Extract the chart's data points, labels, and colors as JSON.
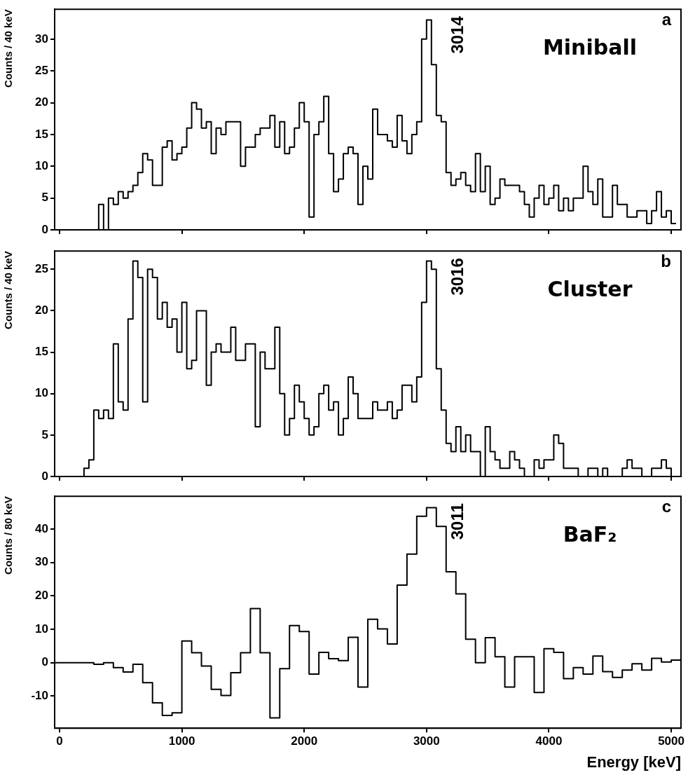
{
  "chart_data": [
    {
      "type": "histogram",
      "title": "Miniball",
      "ylabel": "Counts / 40 keV",
      "annotations": [
        "a",
        "3014"
      ],
      "color": "#000000",
      "tick_labels": "y",
      "xlim": [
        -40,
        5080
      ],
      "xticks": [
        0,
        1000,
        2000,
        3000,
        4000,
        5000
      ],
      "ylim": [
        0,
        34.7
      ],
      "yticks": [
        0,
        5,
        10,
        15,
        20,
        25,
        30
      ],
      "bins": [
        -40,
        0,
        40,
        80,
        120,
        160,
        200,
        240,
        280,
        320,
        360,
        400,
        440,
        480,
        520,
        560,
        600,
        640,
        680,
        720,
        760,
        800,
        840,
        880,
        920,
        960,
        1000,
        1040,
        1080,
        1120,
        1160,
        1200,
        1240,
        1280,
        1320,
        1360,
        1400,
        1440,
        1480,
        1520,
        1560,
        1600,
        1640,
        1680,
        1720,
        1760,
        1800,
        1840,
        1880,
        1920,
        1960,
        2000,
        2040,
        2080,
        2120,
        2160,
        2200,
        2240,
        2280,
        2320,
        2360,
        2400,
        2440,
        2480,
        2520,
        2560,
        2600,
        2640,
        2680,
        2720,
        2760,
        2800,
        2840,
        2880,
        2920,
        2960,
        3000,
        3040,
        3080,
        3120,
        3160,
        3200,
        3240,
        3280,
        3320,
        3360,
        3400,
        3440,
        3480,
        3520,
        3560,
        3600,
        3640,
        3680,
        3720,
        3760,
        3800,
        3840,
        3880,
        3920,
        3960,
        4000,
        4040,
        4080,
        4120,
        4160,
        4200,
        4240,
        4280,
        4320,
        4360,
        4400,
        4440,
        4480,
        4520,
        4560,
        4600,
        4640,
        4680,
        4720,
        4760,
        4800,
        4840,
        4880,
        4920,
        4960,
        5000,
        5040
      ],
      "values": [
        0,
        0,
        0,
        0,
        0,
        0,
        0,
        0,
        0,
        4,
        0,
        5,
        4,
        6,
        5,
        6,
        7,
        9,
        12,
        11,
        7,
        7,
        13,
        14,
        11,
        12,
        13,
        16,
        20,
        19,
        16,
        17,
        12,
        16,
        15,
        17,
        17,
        17,
        10,
        13,
        13,
        15,
        16,
        16,
        18,
        13,
        17,
        12,
        13,
        16,
        20,
        17,
        2,
        15,
        17,
        21,
        12,
        6,
        8,
        12,
        13,
        12,
        4,
        10,
        8,
        19,
        15,
        15,
        14,
        13,
        18,
        14,
        12,
        15,
        17,
        30,
        33,
        26,
        18,
        17,
        9,
        7,
        8,
        9,
        7,
        6,
        12,
        6,
        10,
        4,
        5,
        8,
        7,
        7,
        7,
        6,
        4,
        2,
        5,
        7,
        4,
        5,
        7,
        3,
        5,
        3,
        5,
        5,
        10,
        6,
        4,
        8,
        2,
        2,
        7,
        4,
        4,
        2,
        2,
        3,
        3,
        1,
        3,
        6,
        2,
        3,
        1
      ]
    },
    {
      "type": "histogram",
      "title": "Cluster",
      "ylabel": "Counts / 40 keV",
      "annotations": [
        "b",
        "3016"
      ],
      "color": "#000000",
      "tick_labels": "y",
      "xlim": [
        -40,
        5080
      ],
      "xticks": [
        0,
        1000,
        2000,
        3000,
        4000,
        5000
      ],
      "ylim": [
        0,
        27.2
      ],
      "yticks": [
        0,
        5,
        10,
        15,
        20,
        25
      ],
      "bins": [
        -40,
        0,
        40,
        80,
        120,
        160,
        200,
        240,
        280,
        320,
        360,
        400,
        440,
        480,
        520,
        560,
        600,
        640,
        680,
        720,
        760,
        800,
        840,
        880,
        920,
        960,
        1000,
        1040,
        1080,
        1120,
        1160,
        1200,
        1240,
        1280,
        1320,
        1360,
        1400,
        1440,
        1480,
        1520,
        1560,
        1600,
        1640,
        1680,
        1720,
        1760,
        1800,
        1840,
        1880,
        1920,
        1960,
        2000,
        2040,
        2080,
        2120,
        2160,
        2200,
        2240,
        2280,
        2320,
        2360,
        2400,
        2440,
        2480,
        2520,
        2560,
        2600,
        2640,
        2680,
        2720,
        2760,
        2800,
        2840,
        2880,
        2920,
        2960,
        3000,
        3040,
        3080,
        3120,
        3160,
        3200,
        3240,
        3280,
        3320,
        3360,
        3400,
        3440,
        3480,
        3520,
        3560,
        3600,
        3640,
        3680,
        3720,
        3760,
        3800,
        3840,
        3880,
        3920,
        3960,
        4000,
        4040,
        4080,
        4120,
        4160,
        4200,
        4240,
        4280,
        4320,
        4360,
        4400,
        4440,
        4480,
        4520,
        4560,
        4600,
        4640,
        4680,
        4720,
        4760,
        4800,
        4840,
        4880,
        4920,
        4960,
        5000,
        5040
      ],
      "values": [
        0,
        0,
        0,
        0,
        0,
        0,
        1,
        2,
        8,
        7,
        8,
        7,
        16,
        9,
        8,
        19,
        26,
        24,
        9,
        25,
        24,
        19,
        21,
        18,
        19,
        15,
        21,
        13,
        14,
        20,
        20,
        11,
        15,
        16,
        15,
        15,
        18,
        14,
        14,
        16,
        16,
        6,
        15,
        13,
        13,
        18,
        10,
        5,
        7,
        11,
        9,
        7,
        5,
        6,
        10,
        11,
        8,
        9,
        5,
        7,
        12,
        10,
        7,
        7,
        7,
        9,
        8,
        8,
        9,
        7,
        8,
        11,
        11,
        9,
        12,
        21,
        26,
        25,
        13,
        8,
        4,
        3,
        6,
        3,
        5,
        3,
        3,
        0,
        6,
        3,
        2,
        1,
        1,
        3,
        2,
        1,
        0,
        0,
        2,
        1,
        2,
        2,
        5,
        4,
        1,
        1,
        1,
        0,
        0,
        1,
        1,
        0,
        1,
        0,
        0,
        0,
        1,
        2,
        1,
        1,
        0,
        0,
        1,
        1,
        2,
        1,
        0
      ]
    },
    {
      "type": "histogram",
      "title": "BaF₂",
      "xlabel": "Energy [keV]",
      "ylabel": "Counts / 80 keV",
      "annotations": [
        "c",
        "3011"
      ],
      "color": "#000000",
      "xlim": [
        -40,
        5080
      ],
      "xticks": [
        0,
        1000,
        2000,
        3000,
        4000,
        5000
      ],
      "ylim": [
        -19.6,
        49.8
      ],
      "yticks": [
        -10,
        0,
        10,
        20,
        30,
        40
      ],
      "bins": [
        -40,
        40,
        120,
        200,
        280,
        360,
        440,
        520,
        600,
        680,
        760,
        840,
        920,
        1000,
        1080,
        1160,
        1240,
        1320,
        1400,
        1480,
        1560,
        1640,
        1720,
        1800,
        1880,
        1960,
        2040,
        2120,
        2200,
        2280,
        2360,
        2440,
        2520,
        2600,
        2680,
        2760,
        2840,
        2920,
        3000,
        3080,
        3160,
        3240,
        3320,
        3400,
        3480,
        3560,
        3640,
        3720,
        3800,
        3880,
        3960,
        4040,
        4120,
        4200,
        4280,
        4360,
        4440,
        4520,
        4600,
        4680,
        4760,
        4840,
        4920,
        5000,
        5080
      ],
      "values": [
        0,
        0,
        0,
        0,
        -0.5,
        0,
        -1.5,
        -2.8,
        -0.5,
        -6,
        -12,
        -15.8,
        -15,
        6.5,
        3,
        -1,
        -8,
        -9.8,
        -3,
        3,
        16.2,
        3,
        -16.5,
        -1.8,
        11.1,
        9.3,
        -3.4,
        3.1,
        1.2,
        0.6,
        7.6,
        -7.3,
        13,
        10.1,
        5.6,
        23.2,
        32.5,
        43.8,
        46.4,
        40.8,
        27.2,
        20.6,
        7,
        0,
        7.5,
        1.8,
        -7.3,
        1.8,
        1.8,
        -8.9,
        4.2,
        3.1,
        -4.8,
        -1.5,
        -3.4,
        2,
        -2.7,
        -4.4,
        -2.2,
        -0.3,
        -2.2,
        1.3,
        0.2,
        0.8
      ]
    }
  ]
}
